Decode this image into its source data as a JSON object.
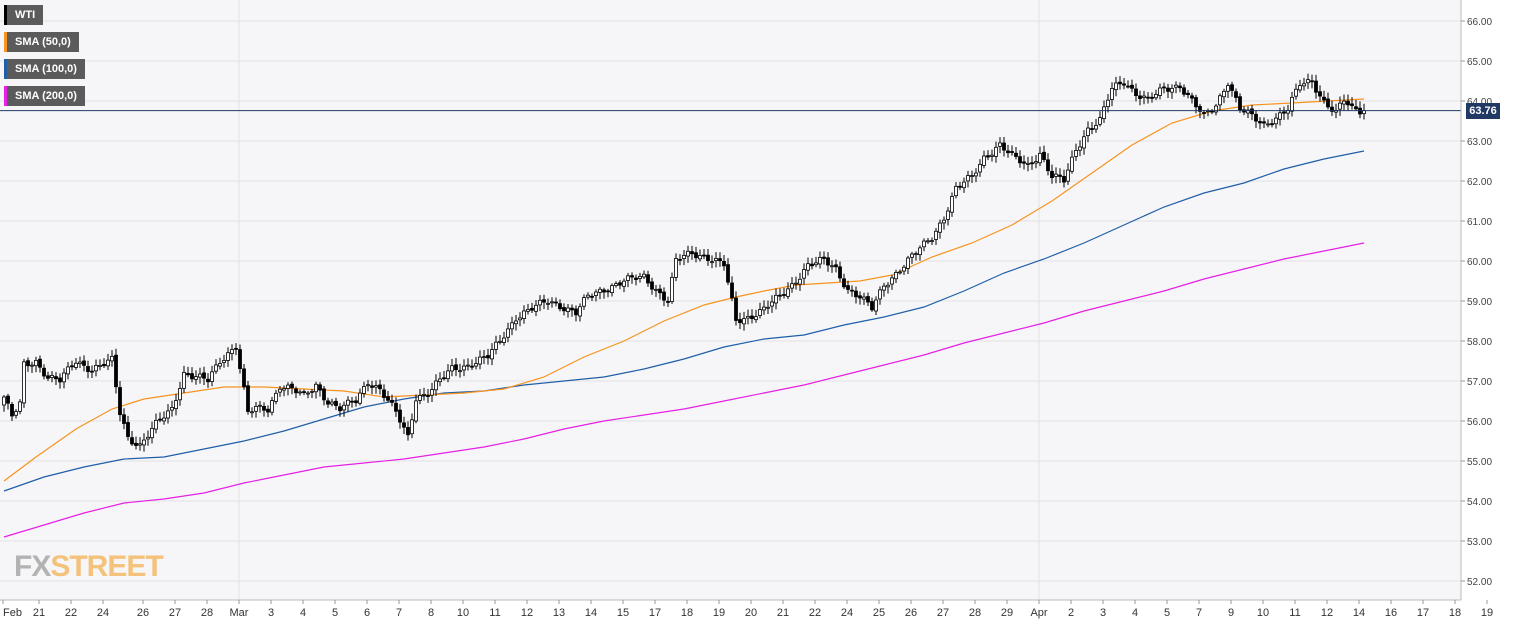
{
  "legend": [
    {
      "label": "WTI",
      "color": "#000000"
    },
    {
      "label": "SMA (50,0)",
      "color": "#f7931e"
    },
    {
      "label": "SMA (100,0)",
      "color": "#1f5fa8"
    },
    {
      "label": "SMA (200,0)",
      "color": "#e620e6"
    }
  ],
  "current_price": "63.76",
  "logo": {
    "fx": "FX",
    "street": "STREET"
  },
  "chart_data": {
    "type": "candlestick",
    "title": "",
    "series_name": "WTI",
    "ylim": [
      51.6,
      66.4
    ],
    "yticks": [
      52,
      53,
      54,
      55,
      56,
      57,
      58,
      59,
      60,
      61,
      62,
      63,
      64,
      65,
      66
    ],
    "ytick_labels": [
      "52.00",
      "53.00",
      "54.00",
      "55.00",
      "56.00",
      "57.00",
      "58.00",
      "59.00",
      "60.00",
      "61.00",
      "62.00",
      "63.00",
      "64.00",
      "65.00",
      "66.00"
    ],
    "xlim": [
      0,
      364
    ],
    "xtick_labels": [
      "Feb",
      "21",
      "22",
      "24",
      "26",
      "27",
      "28",
      "Mar",
      "3",
      "4",
      "5",
      "6",
      "7",
      "8",
      "10",
      "11",
      "12",
      "13",
      "14",
      "15",
      "17",
      "18",
      "19",
      "20",
      "21",
      "22",
      "24",
      "25",
      "26",
      "27",
      "28",
      "29",
      "Apr",
      "2",
      "3",
      "4",
      "5",
      "7",
      "9",
      "10",
      "11",
      "12",
      "14",
      "16",
      "17",
      "18",
      "19"
    ],
    "xtick_positions": [
      0,
      9,
      17,
      25,
      35,
      43,
      51,
      59,
      67,
      75,
      83,
      91,
      99,
      107,
      115,
      123,
      131,
      139,
      147,
      155,
      163,
      171,
      179,
      187,
      195,
      203,
      211,
      219,
      227,
      235,
      243,
      251,
      259,
      267,
      275,
      283,
      291,
      299,
      307,
      315,
      323,
      331,
      339,
      347,
      355,
      363,
      371
    ],
    "current_price": 63.76,
    "price_line_color": "#1f3864",
    "ohlc_keyframes": [
      [
        0,
        56.6
      ],
      [
        2,
        56.1
      ],
      [
        4,
        56.4
      ],
      [
        5,
        57.4
      ],
      [
        8,
        57.5
      ],
      [
        11,
        57.1
      ],
      [
        14,
        57.0
      ],
      [
        18,
        57.5
      ],
      [
        22,
        57.3
      ],
      [
        27,
        57.5
      ],
      [
        29,
        56.2
      ],
      [
        31,
        55.6
      ],
      [
        34,
        55.4
      ],
      [
        38,
        55.9
      ],
      [
        42,
        56.3
      ],
      [
        45,
        57.2
      ],
      [
        48,
        57.1
      ],
      [
        51,
        57.0
      ],
      [
        54,
        57.5
      ],
      [
        58,
        57.9
      ],
      [
        61,
        56.2
      ],
      [
        63,
        56.3
      ],
      [
        66,
        56.3
      ],
      [
        69,
        56.9
      ],
      [
        72,
        56.8
      ],
      [
        75,
        56.6
      ],
      [
        78,
        56.9
      ],
      [
        81,
        56.5
      ],
      [
        84,
        56.3
      ],
      [
        88,
        56.5
      ],
      [
        91,
        57.0
      ],
      [
        94,
        56.8
      ],
      [
        98,
        56.2
      ],
      [
        101,
        55.6
      ],
      [
        103,
        56.6
      ],
      [
        106,
        56.7
      ],
      [
        109,
        57.0
      ],
      [
        112,
        57.3
      ],
      [
        116,
        57.4
      ],
      [
        121,
        57.6
      ],
      [
        124,
        58.0
      ],
      [
        128,
        58.6
      ],
      [
        132,
        58.8
      ],
      [
        136,
        59.0
      ],
      [
        139,
        58.9
      ],
      [
        143,
        58.7
      ],
      [
        146,
        59.1
      ],
      [
        150,
        59.3
      ],
      [
        155,
        59.5
      ],
      [
        160,
        59.6
      ],
      [
        163,
        59.3
      ],
      [
        166,
        59.0
      ],
      [
        168,
        60.0
      ],
      [
        172,
        60.2
      ],
      [
        176,
        60.1
      ],
      [
        180,
        59.9
      ],
      [
        183,
        58.5
      ],
      [
        186,
        58.6
      ],
      [
        190,
        58.8
      ],
      [
        194,
        59.1
      ],
      [
        197,
        59.4
      ],
      [
        201,
        59.9
      ],
      [
        205,
        60.0
      ],
      [
        208,
        59.8
      ],
      [
        211,
        59.3
      ],
      [
        214,
        59.1
      ],
      [
        217,
        58.8
      ],
      [
        220,
        59.4
      ],
      [
        224,
        59.8
      ],
      [
        228,
        60.2
      ],
      [
        232,
        60.6
      ],
      [
        235,
        61.1
      ],
      [
        238,
        61.8
      ],
      [
        242,
        62.1
      ],
      [
        245,
        62.6
      ],
      [
        249,
        62.9
      ],
      [
        252,
        62.6
      ],
      [
        256,
        62.4
      ],
      [
        259,
        62.7
      ],
      [
        262,
        62.1
      ],
      [
        265,
        62.0
      ],
      [
        268,
        62.8
      ],
      [
        271,
        63.3
      ],
      [
        274,
        63.5
      ],
      [
        277,
        64.3
      ],
      [
        280,
        64.5
      ],
      [
        283,
        64.2
      ],
      [
        286,
        64.0
      ],
      [
        290,
        64.3
      ],
      [
        294,
        64.4
      ],
      [
        297,
        64.0
      ],
      [
        300,
        63.6
      ],
      [
        303,
        63.9
      ],
      [
        306,
        64.5
      ],
      [
        309,
        63.8
      ],
      [
        312,
        63.6
      ],
      [
        315,
        63.4
      ],
      [
        318,
        63.6
      ],
      [
        321,
        63.8
      ],
      [
        324,
        64.4
      ],
      [
        327,
        64.5
      ],
      [
        330,
        64.0
      ],
      [
        333,
        63.7
      ],
      [
        335,
        64.0
      ],
      [
        337,
        63.8
      ],
      [
        340,
        63.76
      ]
    ],
    "candle_count": 341,
    "sma_50": {
      "name": "SMA (50,0)",
      "color": "#f7931e",
      "points": [
        [
          0,
          54.5
        ],
        [
          8,
          55.1
        ],
        [
          18,
          55.8
        ],
        [
          27,
          56.3
        ],
        [
          35,
          56.55
        ],
        [
          45,
          56.7
        ],
        [
          55,
          56.85
        ],
        [
          65,
          56.85
        ],
        [
          75,
          56.8
        ],
        [
          85,
          56.75
        ],
        [
          95,
          56.6
        ],
        [
          105,
          56.65
        ],
        [
          115,
          56.7
        ],
        [
          125,
          56.8
        ],
        [
          135,
          57.1
        ],
        [
          145,
          57.6
        ],
        [
          155,
          58.0
        ],
        [
          165,
          58.5
        ],
        [
          175,
          58.9
        ],
        [
          183,
          59.1
        ],
        [
          190,
          59.25
        ],
        [
          198,
          59.4
        ],
        [
          206,
          59.45
        ],
        [
          214,
          59.5
        ],
        [
          222,
          59.65
        ],
        [
          232,
          60.1
        ],
        [
          242,
          60.45
        ],
        [
          252,
          60.9
        ],
        [
          262,
          61.5
        ],
        [
          272,
          62.2
        ],
        [
          282,
          62.9
        ],
        [
          292,
          63.45
        ],
        [
          302,
          63.75
        ],
        [
          312,
          63.9
        ],
        [
          322,
          63.95
        ],
        [
          331,
          64.0
        ],
        [
          340,
          64.05
        ]
      ]
    },
    "sma_100": {
      "name": "SMA (100,0)",
      "color": "#1f5fa8",
      "points": [
        [
          0,
          54.25
        ],
        [
          10,
          54.6
        ],
        [
          20,
          54.85
        ],
        [
          30,
          55.05
        ],
        [
          40,
          55.1
        ],
        [
          50,
          55.3
        ],
        [
          60,
          55.5
        ],
        [
          70,
          55.75
        ],
        [
          80,
          56.05
        ],
        [
          90,
          56.35
        ],
        [
          100,
          56.55
        ],
        [
          110,
          56.7
        ],
        [
          120,
          56.75
        ],
        [
          130,
          56.9
        ],
        [
          140,
          57.0
        ],
        [
          150,
          57.1
        ],
        [
          160,
          57.3
        ],
        [
          170,
          57.55
        ],
        [
          180,
          57.85
        ],
        [
          190,
          58.05
        ],
        [
          200,
          58.15
        ],
        [
          210,
          58.4
        ],
        [
          220,
          58.6
        ],
        [
          230,
          58.85
        ],
        [
          240,
          59.25
        ],
        [
          250,
          59.7
        ],
        [
          260,
          60.05
        ],
        [
          270,
          60.45
        ],
        [
          280,
          60.9
        ],
        [
          290,
          61.35
        ],
        [
          300,
          61.7
        ],
        [
          310,
          61.95
        ],
        [
          320,
          62.3
        ],
        [
          330,
          62.55
        ],
        [
          340,
          62.75
        ]
      ]
    },
    "sma_200": {
      "name": "SMA (200,0)",
      "color": "#e620e6",
      "points": [
        [
          0,
          53.1
        ],
        [
          10,
          53.4
        ],
        [
          20,
          53.7
        ],
        [
          30,
          53.95
        ],
        [
          40,
          54.05
        ],
        [
          50,
          54.2
        ],
        [
          60,
          54.45
        ],
        [
          70,
          54.65
        ],
        [
          80,
          54.85
        ],
        [
          90,
          54.95
        ],
        [
          100,
          55.05
        ],
        [
          110,
          55.2
        ],
        [
          120,
          55.35
        ],
        [
          130,
          55.55
        ],
        [
          140,
          55.8
        ],
        [
          150,
          56.0
        ],
        [
          160,
          56.15
        ],
        [
          170,
          56.3
        ],
        [
          180,
          56.5
        ],
        [
          190,
          56.7
        ],
        [
          200,
          56.9
        ],
        [
          210,
          57.15
        ],
        [
          220,
          57.4
        ],
        [
          230,
          57.65
        ],
        [
          240,
          57.95
        ],
        [
          250,
          58.2
        ],
        [
          260,
          58.45
        ],
        [
          270,
          58.75
        ],
        [
          280,
          59.0
        ],
        [
          290,
          59.25
        ],
        [
          300,
          59.55
        ],
        [
          310,
          59.8
        ],
        [
          320,
          60.05
        ],
        [
          330,
          60.25
        ],
        [
          340,
          60.45
        ]
      ]
    }
  }
}
